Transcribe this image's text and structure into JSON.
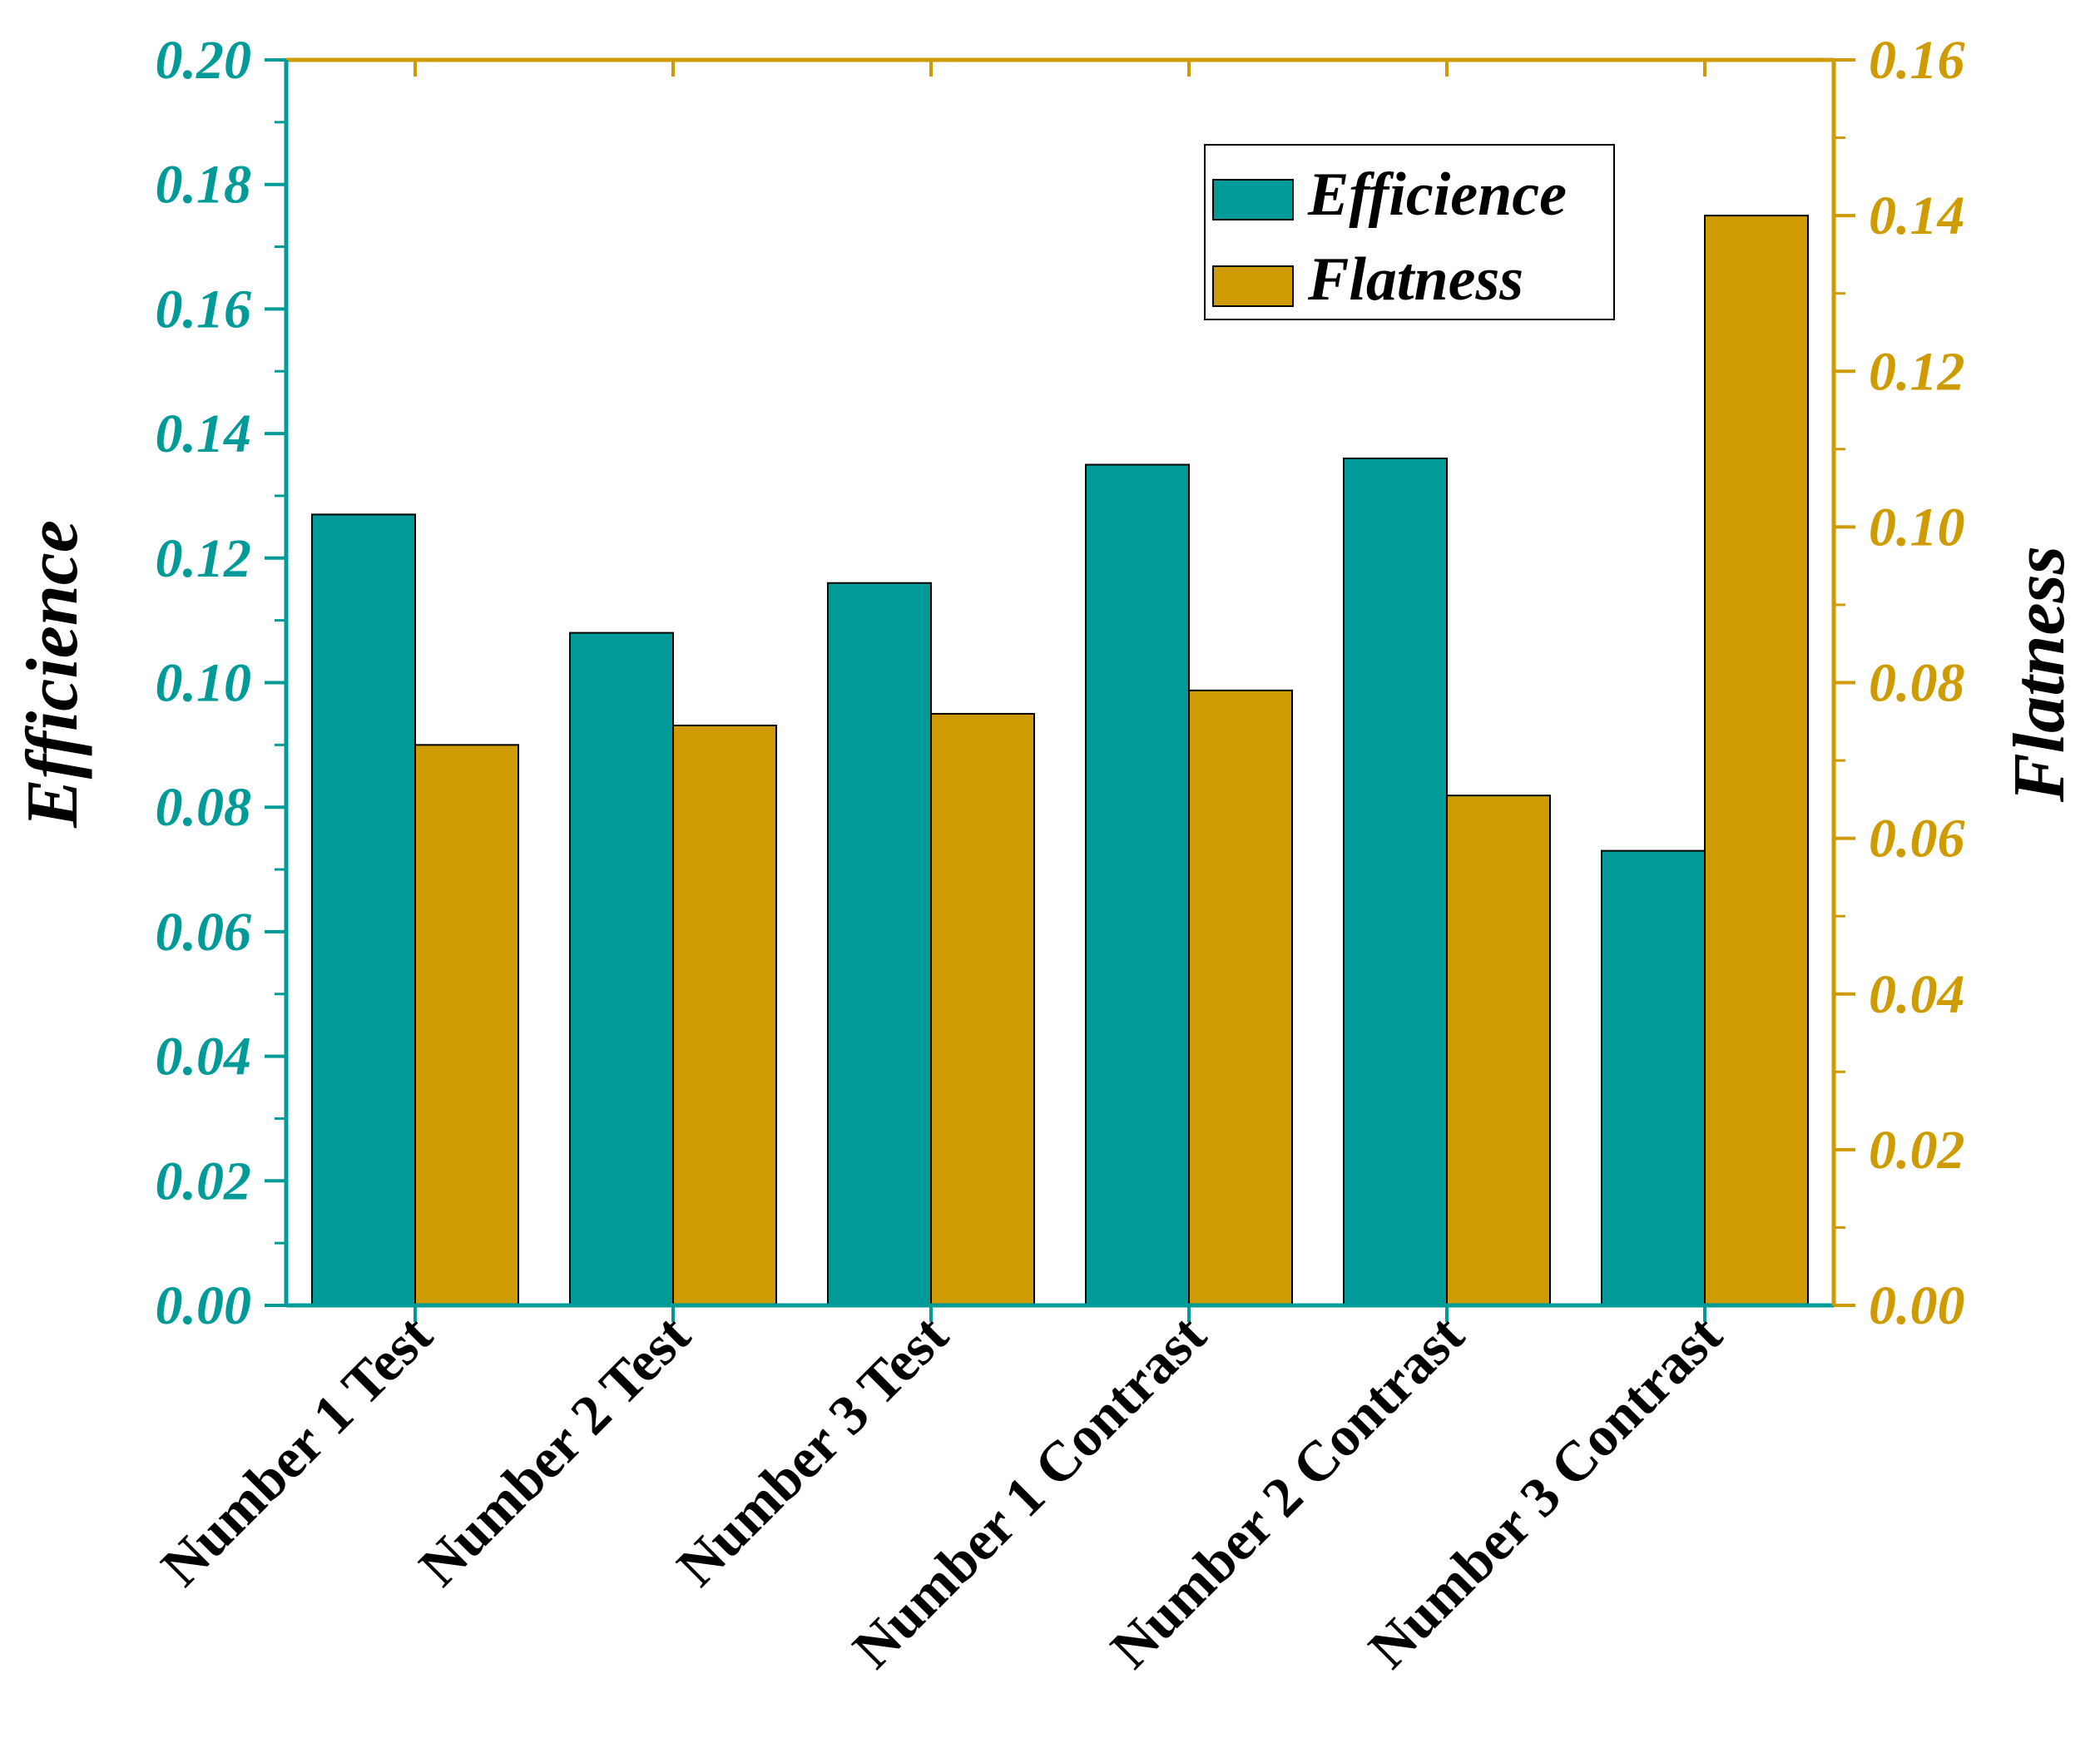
{
  "chart_data": {
    "type": "bar",
    "categories": [
      "Number 1 Test",
      "Number 2 Test",
      "Number 3 Test",
      "Number 1 Contrast",
      "Number 2 Contrast",
      "Number 3 Contrast"
    ],
    "series": [
      {
        "name": "Efficience",
        "axis": "left",
        "color": "#009B98",
        "values": [
          0.127,
          0.108,
          0.116,
          0.135,
          0.136,
          0.073
        ]
      },
      {
        "name": "Flatness",
        "axis": "right",
        "color": "#CE9B00",
        "values": [
          0.072,
          0.0745,
          0.076,
          0.079,
          0.0655,
          0.14
        ]
      }
    ],
    "ylabel": "Efficience",
    "y2label": "Flatness",
    "ylim": [
      0,
      0.2
    ],
    "y2lim": [
      0,
      0.16
    ],
    "yticks": [
      "0.00",
      "0.02",
      "0.04",
      "0.06",
      "0.08",
      "0.10",
      "0.12",
      "0.14",
      "0.16",
      "0.18",
      "0.20"
    ],
    "y2ticks": [
      "0.00",
      "0.02",
      "0.04",
      "0.06",
      "0.08",
      "0.10",
      "0.12",
      "0.14",
      "0.16"
    ],
    "legend": [
      "Efficience",
      "Flatness"
    ],
    "legend_position": "top-right",
    "left_axis_color": "#009B98",
    "right_axis_color": "#CE9B00",
    "grid": false
  }
}
